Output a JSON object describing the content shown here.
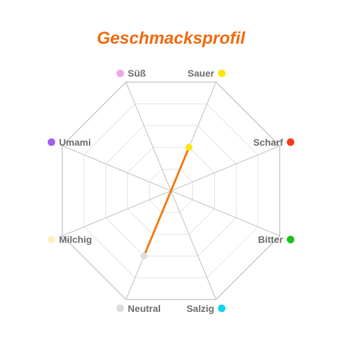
{
  "chart_data": {
    "type": "radar",
    "title": "Geschmacksprofil",
    "scale_max": 5,
    "grid_rings": 5,
    "axes": [
      {
        "label": "Süß",
        "color": "#f3a6ea",
        "value": 0
      },
      {
        "label": "Sauer",
        "color": "#fde705",
        "value": 2
      },
      {
        "label": "Scharf",
        "color": "#f23c1a",
        "value": 0
      },
      {
        "label": "Bitter",
        "color": "#1bc21b",
        "value": 0
      },
      {
        "label": "Salzig",
        "color": "#14d3f0",
        "value": 0
      },
      {
        "label": "Neutral",
        "color": "#dcdcdc",
        "value": 3
      },
      {
        "label": "Milchig",
        "color": "#fbf2c3",
        "value": 0
      },
      {
        "label": "Umami",
        "color": "#a35cf0",
        "value": 0
      }
    ],
    "series": [
      {
        "color": "#f07a10",
        "values": [
          0,
          2,
          0,
          0,
          0,
          3,
          0,
          0
        ]
      }
    ],
    "legend": "none"
  }
}
